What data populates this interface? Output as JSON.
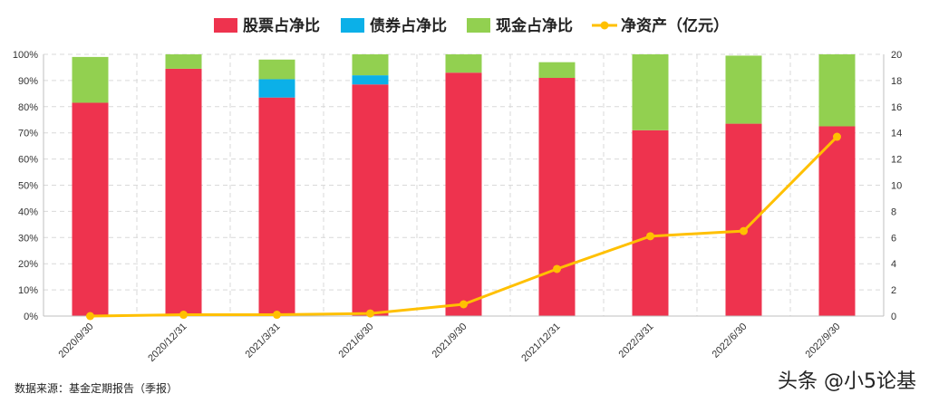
{
  "chart_data": {
    "type": "bar",
    "categories": [
      "2020/9/30",
      "2020/12/31",
      "2021/3/31",
      "2021/6/30",
      "2021/9/30",
      "2021/12/31",
      "2022/3/31",
      "2022/6/30",
      "2022/9/30"
    ],
    "series": [
      {
        "name": "股票占净比",
        "type": "stacked-bar",
        "axis": "left",
        "color": "#EE334E",
        "values": [
          81.5,
          94.5,
          83.5,
          88.5,
          93.0,
          91.0,
          71.0,
          73.5,
          72.5
        ]
      },
      {
        "name": "债券占净比",
        "type": "stacked-bar",
        "axis": "left",
        "color": "#0BB0E8",
        "values": [
          0,
          0,
          7.0,
          3.5,
          0,
          0,
          0,
          0,
          0
        ]
      },
      {
        "name": "现金占净比",
        "type": "stacked-bar",
        "axis": "left",
        "color": "#92D050",
        "values": [
          17.5,
          5.5,
          7.5,
          8.0,
          7.0,
          6.0,
          29.0,
          26.0,
          27.5
        ]
      },
      {
        "name": "净资产（亿元）",
        "type": "line",
        "axis": "right",
        "color": "#FFC000",
        "values": [
          0.0,
          0.1,
          0.1,
          0.2,
          0.9,
          3.6,
          6.1,
          6.5,
          13.7
        ]
      }
    ],
    "y_left": {
      "min": 0,
      "max": 100,
      "step": 10,
      "ticks": [
        "0%",
        "10%",
        "20%",
        "30%",
        "40%",
        "50%",
        "60%",
        "70%",
        "80%",
        "90%",
        "100%"
      ]
    },
    "y_right": {
      "min": 0,
      "max": 20,
      "step": 2,
      "ticks": [
        "0",
        "2",
        "4",
        "6",
        "8",
        "10",
        "12",
        "14",
        "16",
        "18",
        "20"
      ]
    },
    "grid": true,
    "legend_position": "top"
  },
  "footer": {
    "source": "数据来源：基金定期报告（季报）",
    "watermark": "头条 @小5论基"
  }
}
